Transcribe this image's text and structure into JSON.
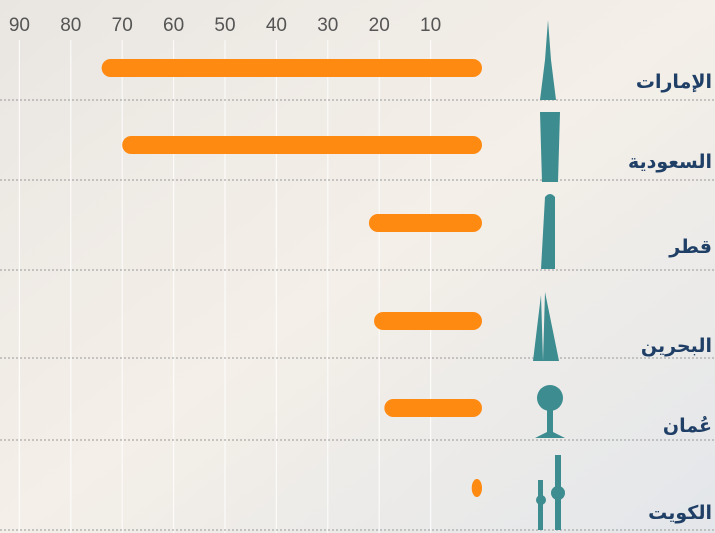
{
  "chart_data": {
    "type": "bar",
    "orientation": "horizontal",
    "direction": "right-to-left",
    "categories": [
      "الإمارات",
      "السعودية",
      "قطر",
      "البحرين",
      "عُمان",
      "الكويت"
    ],
    "values": [
      74,
      70,
      22,
      21,
      19,
      2
    ],
    "color": "#ff8a12",
    "xlim": [
      0,
      95
    ],
    "xticks": [
      10,
      20,
      30,
      40,
      50,
      60,
      70,
      80,
      90
    ],
    "grid": true
  }
}
